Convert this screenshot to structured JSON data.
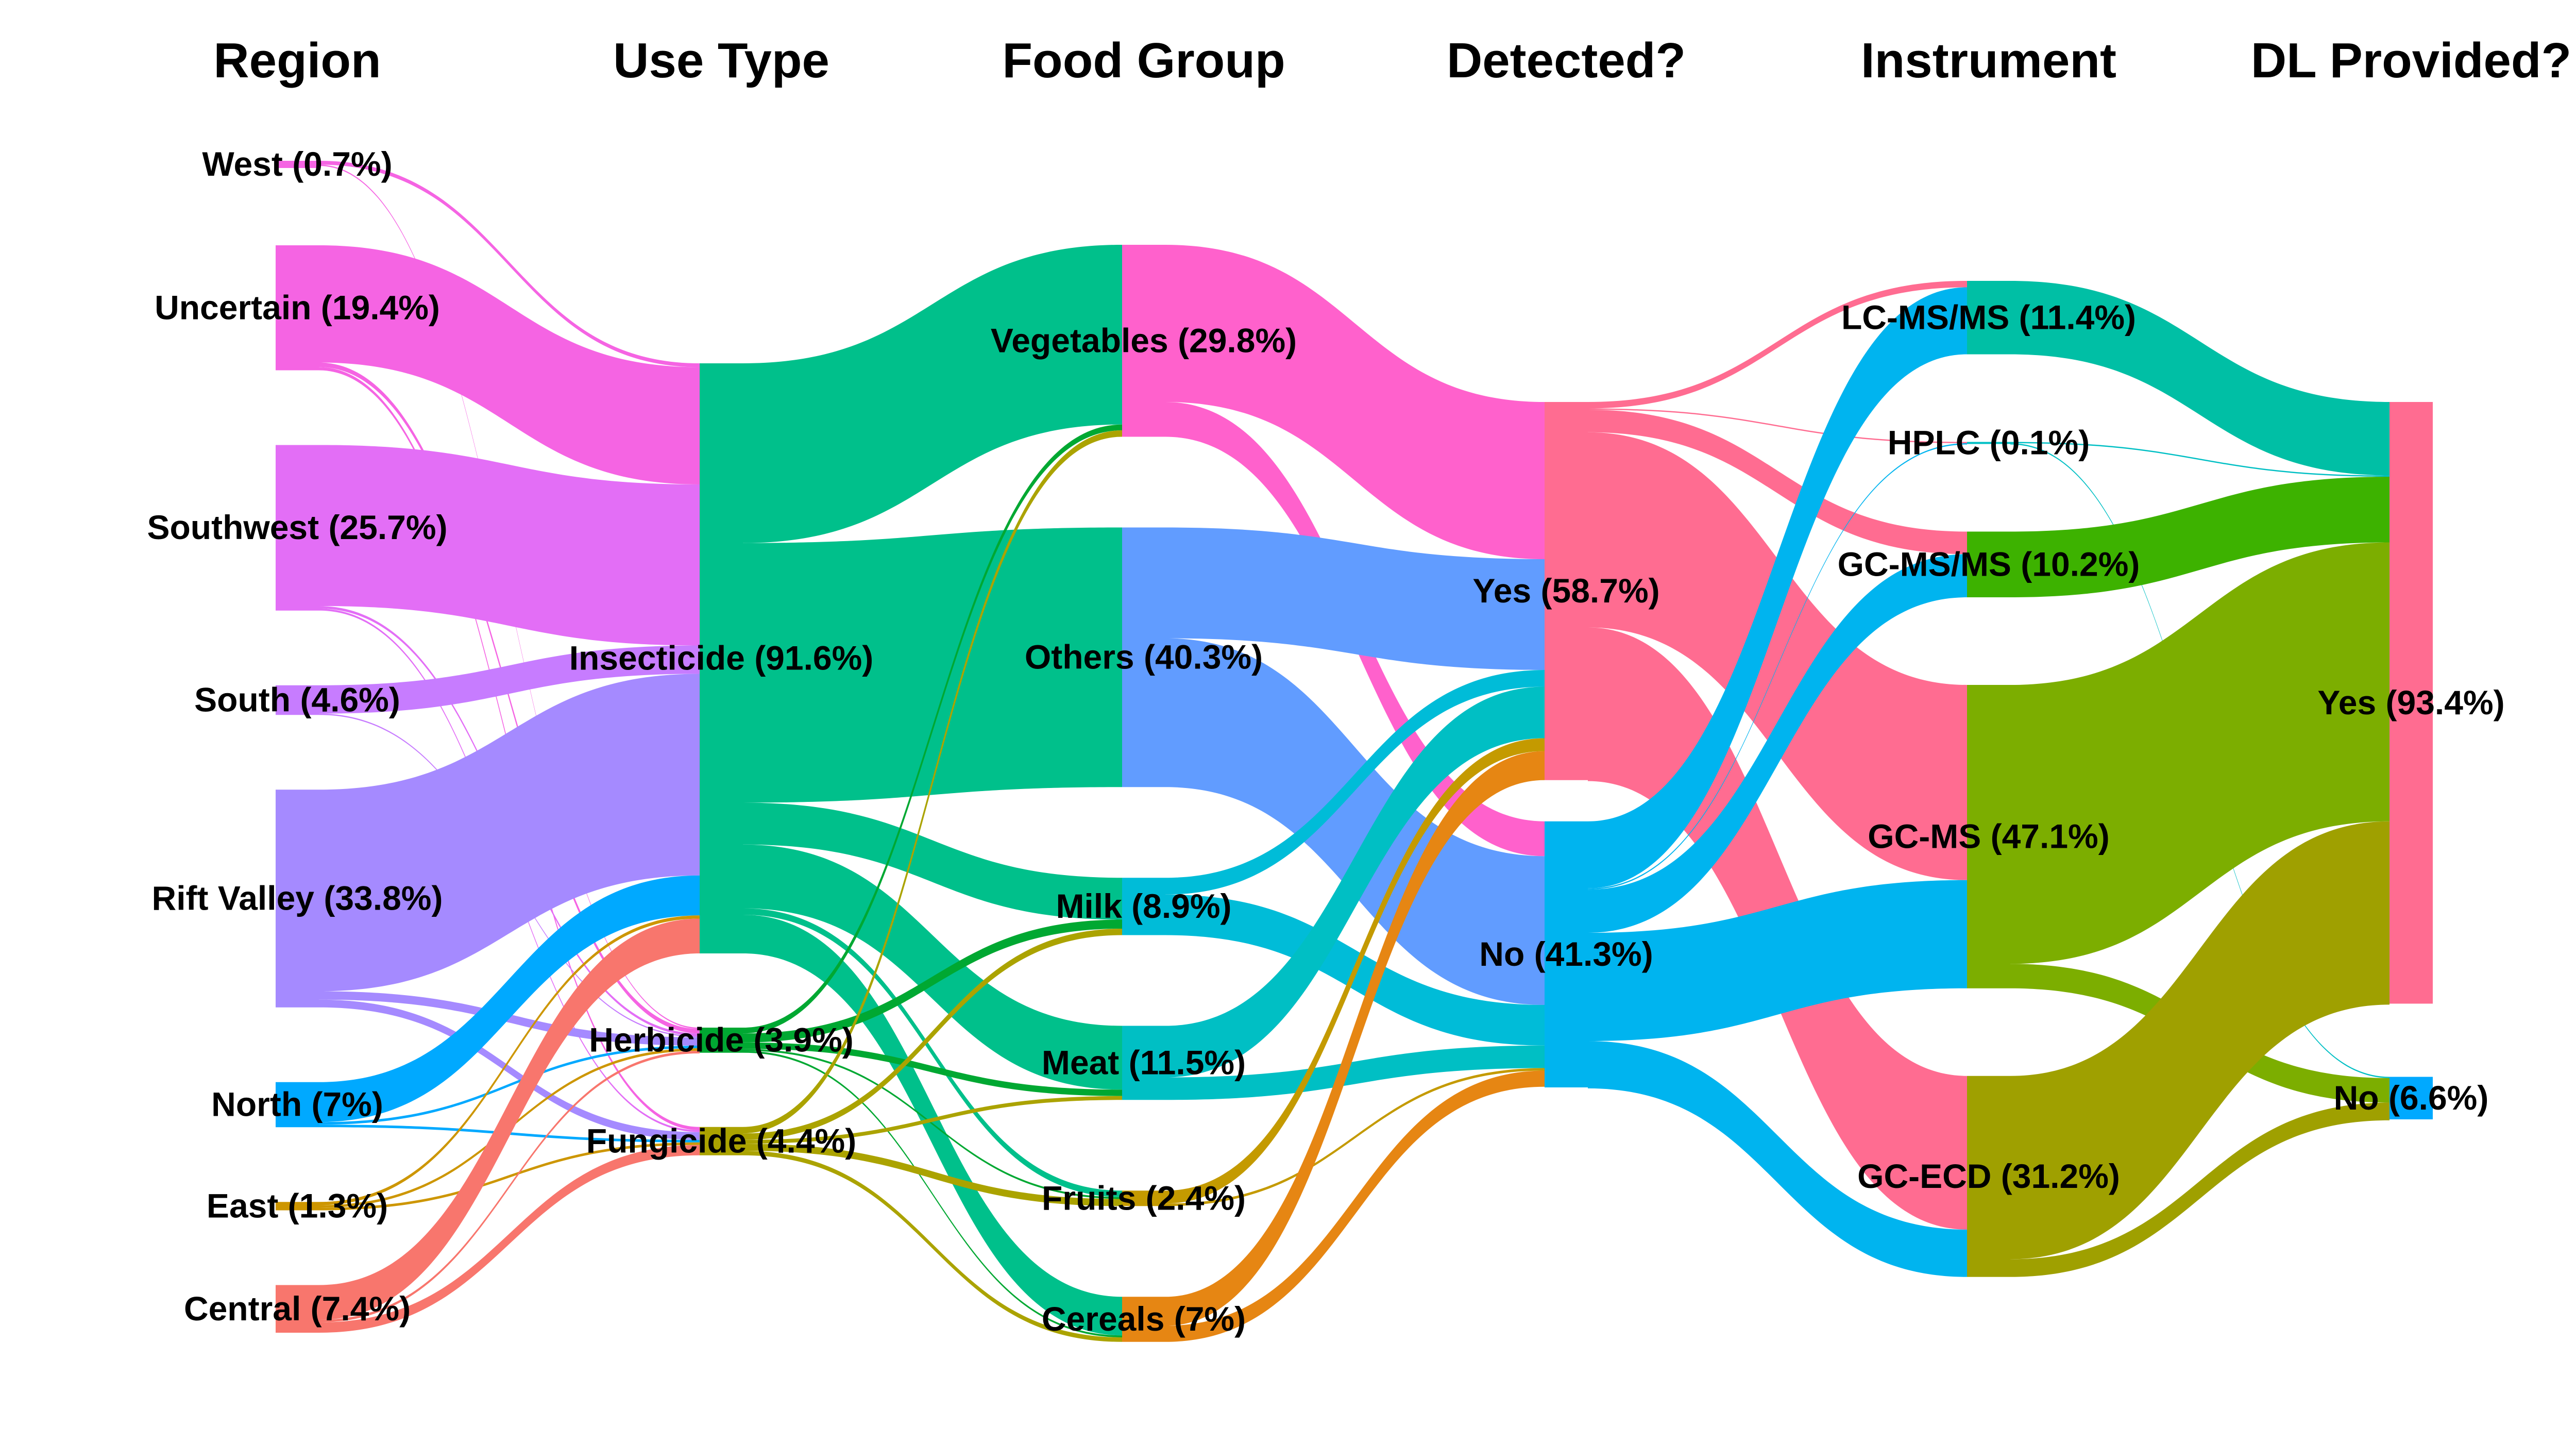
{
  "columns": [
    {
      "key": "region",
      "header": "Region"
    },
    {
      "key": "use_type",
      "header": "Use Type"
    },
    {
      "key": "food_group",
      "header": "Food Group"
    },
    {
      "key": "detected",
      "header": "Detected?"
    },
    {
      "key": "instrument",
      "header": "Instrument"
    },
    {
      "key": "dl_provided",
      "header": "DL Provided?"
    }
  ],
  "nodes": {
    "region": [
      {
        "id": "west",
        "label": "West (0.7%)",
        "share": 0.7,
        "color": "#F564E3"
      },
      {
        "id": "uncertain",
        "label": "Uncertain (19.4%)",
        "share": 19.4,
        "color": "#F564E3"
      },
      {
        "id": "southwest",
        "label": "Southwest (25.7%)",
        "share": 25.7,
        "color": "#E36EF6"
      },
      {
        "id": "south",
        "label": "South (4.6%)",
        "share": 4.6,
        "color": "#C77CFF"
      },
      {
        "id": "riftvalley",
        "label": "Rift Valley (33.8%)",
        "share": 33.8,
        "color": "#A58AFF"
      },
      {
        "id": "north",
        "label": "North (7%)",
        "share": 7.0,
        "color": "#00A9FF"
      },
      {
        "id": "east",
        "label": "East (1.3%)",
        "share": 1.3,
        "color": "#CD9600"
      },
      {
        "id": "central",
        "label": "Central (7.4%)",
        "share": 7.4,
        "color": "#F8766D"
      }
    ],
    "use_type": [
      {
        "id": "insecticide",
        "label": "Insecticide (91.6%)",
        "share": 91.6,
        "color": "#00C08B"
      },
      {
        "id": "herbicide",
        "label": "Herbicide (3.9%)",
        "share": 3.9,
        "color": "#00A832"
      },
      {
        "id": "fungicide",
        "label": "Fungicide (4.4%)",
        "share": 4.4,
        "color": "#ABA300"
      }
    ],
    "food_group": [
      {
        "id": "vegetables",
        "label": "Vegetables (29.8%)",
        "share": 29.8,
        "color": "#FF61CC"
      },
      {
        "id": "others",
        "label": "Others (40.3%)",
        "share": 40.3,
        "color": "#619CFF"
      },
      {
        "id": "milk",
        "label": "Milk (8.9%)",
        "share": 8.9,
        "color": "#00BCD8"
      },
      {
        "id": "meat",
        "label": "Meat (11.5%)",
        "share": 11.5,
        "color": "#00BFC4"
      },
      {
        "id": "fruits",
        "label": "Fruits (2.4%)",
        "share": 2.4,
        "color": "#C49A00"
      },
      {
        "id": "cereals",
        "label": "Cereals (7%)",
        "share": 7.0,
        "color": "#E68613"
      }
    ],
    "detected": [
      {
        "id": "yes",
        "label": "Yes (58.7%)",
        "share": 58.7,
        "color": "#FF6C91"
      },
      {
        "id": "no",
        "label": "No (41.3%)",
        "share": 41.3,
        "color": "#00B4EF"
      }
    ],
    "instrument": [
      {
        "id": "lcmsms",
        "label": "LC-MS/MS (11.4%)",
        "share": 11.4,
        "color": "#00BFA5"
      },
      {
        "id": "hplc",
        "label": "HPLC (0.1%)",
        "share": 0.1,
        "color": "#00BFC4"
      },
      {
        "id": "gcmsms",
        "label": "GC-MS/MS (10.2%)",
        "share": 10.2,
        "color": "#3DB200"
      },
      {
        "id": "gcms",
        "label": "GC-MS (47.1%)",
        "share": 47.1,
        "color": "#7CAE00"
      },
      {
        "id": "gcecd",
        "label": "GC-ECD (31.2%)",
        "share": 31.2,
        "color": "#9FA000"
      }
    ],
    "dl_provided": [
      {
        "id": "dlyes",
        "label": "Yes (93.4%)",
        "share": 93.4,
        "color": "#FF6C91"
      },
      {
        "id": "dlno",
        "label": "No (6.6%)",
        "share": 6.6,
        "color": "#00A9FF"
      }
    ]
  },
  "flows": [
    {
      "from": "region",
      "source": "west",
      "target": "insecticide",
      "value": 0.6,
      "color": "#F564E3"
    },
    {
      "from": "region",
      "source": "west",
      "target": "herbicide",
      "value": 0.1,
      "color": "#F564E3"
    },
    {
      "from": "region",
      "source": "uncertain",
      "target": "insecticide",
      "value": 18.2,
      "color": "#F564E3"
    },
    {
      "from": "region",
      "source": "uncertain",
      "target": "herbicide",
      "value": 0.7,
      "color": "#F564E3"
    },
    {
      "from": "region",
      "source": "uncertain",
      "target": "fungicide",
      "value": 0.5,
      "color": "#F564E3"
    },
    {
      "from": "region",
      "source": "southwest",
      "target": "insecticide",
      "value": 25.0,
      "color": "#E36EF6"
    },
    {
      "from": "region",
      "source": "southwest",
      "target": "herbicide",
      "value": 0.4,
      "color": "#E36EF6"
    },
    {
      "from": "region",
      "source": "southwest",
      "target": "fungicide",
      "value": 0.3,
      "color": "#E36EF6"
    },
    {
      "from": "region",
      "source": "south",
      "target": "insecticide",
      "value": 4.4,
      "color": "#C77CFF"
    },
    {
      "from": "region",
      "source": "south",
      "target": "herbicide",
      "value": 0.2,
      "color": "#C77CFF"
    },
    {
      "from": "region",
      "source": "riftvalley",
      "target": "insecticide",
      "value": 31.3,
      "color": "#A58AFF"
    },
    {
      "from": "region",
      "source": "riftvalley",
      "target": "herbicide",
      "value": 1.3,
      "color": "#A58AFF"
    },
    {
      "from": "region",
      "source": "riftvalley",
      "target": "fungicide",
      "value": 1.2,
      "color": "#A58AFF"
    },
    {
      "from": "region",
      "source": "north",
      "target": "insecticide",
      "value": 6.2,
      "color": "#00A9FF"
    },
    {
      "from": "region",
      "source": "north",
      "target": "herbicide",
      "value": 0.4,
      "color": "#00A9FF"
    },
    {
      "from": "region",
      "source": "north",
      "target": "fungicide",
      "value": 0.4,
      "color": "#00A9FF"
    },
    {
      "from": "region",
      "source": "east",
      "target": "insecticide",
      "value": 0.5,
      "color": "#CD9600"
    },
    {
      "from": "region",
      "source": "east",
      "target": "herbicide",
      "value": 0.4,
      "color": "#CD9600"
    },
    {
      "from": "region",
      "source": "east",
      "target": "fungicide",
      "value": 0.4,
      "color": "#CD9600"
    },
    {
      "from": "region",
      "source": "central",
      "target": "insecticide",
      "value": 5.4,
      "color": "#F8766D"
    },
    {
      "from": "region",
      "source": "central",
      "target": "herbicide",
      "value": 0.4,
      "color": "#F8766D"
    },
    {
      "from": "region",
      "source": "central",
      "target": "fungicide",
      "value": 1.6,
      "color": "#F8766D"
    },
    {
      "from": "use_type",
      "source": "insecticide",
      "target": "vegetables",
      "value": 27.9,
      "color": "#00C08B"
    },
    {
      "from": "use_type",
      "source": "insecticide",
      "target": "others",
      "value": 40.3,
      "color": "#00C08B"
    },
    {
      "from": "use_type",
      "source": "insecticide",
      "target": "milk",
      "value": 6.5,
      "color": "#00C08B"
    },
    {
      "from": "use_type",
      "source": "insecticide",
      "target": "meat",
      "value": 9.9,
      "color": "#00C08B"
    },
    {
      "from": "use_type",
      "source": "insecticide",
      "target": "fruits",
      "value": 1.0,
      "color": "#00C08B"
    },
    {
      "from": "use_type",
      "source": "insecticide",
      "target": "cereals",
      "value": 6.0,
      "color": "#00C08B"
    },
    {
      "from": "use_type",
      "source": "herbicide",
      "target": "vegetables",
      "value": 0.9,
      "color": "#00A832"
    },
    {
      "from": "use_type",
      "source": "herbicide",
      "target": "milk",
      "value": 1.4,
      "color": "#00A832"
    },
    {
      "from": "use_type",
      "source": "herbicide",
      "target": "meat",
      "value": 1.0,
      "color": "#00A832"
    },
    {
      "from": "use_type",
      "source": "herbicide",
      "target": "fruits",
      "value": 0.3,
      "color": "#00A832"
    },
    {
      "from": "use_type",
      "source": "herbicide",
      "target": "cereals",
      "value": 0.3,
      "color": "#00A832"
    },
    {
      "from": "use_type",
      "source": "fungicide",
      "target": "vegetables",
      "value": 1.0,
      "color": "#ABA300"
    },
    {
      "from": "use_type",
      "source": "fungicide",
      "target": "milk",
      "value": 1.0,
      "color": "#ABA300"
    },
    {
      "from": "use_type",
      "source": "fungicide",
      "target": "meat",
      "value": 0.6,
      "color": "#ABA300"
    },
    {
      "from": "use_type",
      "source": "fungicide",
      "target": "fruits",
      "value": 1.1,
      "color": "#ABA300"
    },
    {
      "from": "use_type",
      "source": "fungicide",
      "target": "cereals",
      "value": 0.7,
      "color": "#ABA300"
    },
    {
      "from": "food_group",
      "source": "vegetables",
      "target": "yes",
      "value": 24.4,
      "color": "#FF61CC"
    },
    {
      "from": "food_group",
      "source": "vegetables",
      "target": "no",
      "value": 5.4,
      "color": "#FF61CC"
    },
    {
      "from": "food_group",
      "source": "others",
      "target": "yes",
      "value": 17.2,
      "color": "#619CFF"
    },
    {
      "from": "food_group",
      "source": "others",
      "target": "no",
      "value": 23.1,
      "color": "#619CFF"
    },
    {
      "from": "food_group",
      "source": "milk",
      "target": "yes",
      "value": 2.6,
      "color": "#00BCD8"
    },
    {
      "from": "food_group",
      "source": "milk",
      "target": "no",
      "value": 6.3,
      "color": "#00BCD8"
    },
    {
      "from": "food_group",
      "source": "meat",
      "target": "yes",
      "value": 8.0,
      "color": "#00BFC4"
    },
    {
      "from": "food_group",
      "source": "meat",
      "target": "no",
      "value": 3.5,
      "color": "#00BFC4"
    },
    {
      "from": "food_group",
      "source": "fruits",
      "target": "yes",
      "value": 2.0,
      "color": "#C49A00"
    },
    {
      "from": "food_group",
      "source": "fruits",
      "target": "no",
      "value": 0.4,
      "color": "#C49A00"
    },
    {
      "from": "food_group",
      "source": "cereals",
      "target": "yes",
      "value": 4.5,
      "color": "#E68613"
    },
    {
      "from": "food_group",
      "source": "cereals",
      "target": "no",
      "value": 2.5,
      "color": "#E68613"
    },
    {
      "from": "detected",
      "source": "yes",
      "target": "lcmsms",
      "value": 1.0,
      "color": "#FF6C91"
    },
    {
      "from": "detected",
      "source": "yes",
      "target": "hplc",
      "value": 0.05,
      "color": "#FF6C91"
    },
    {
      "from": "detected",
      "source": "yes",
      "target": "gcmsms",
      "value": 3.5,
      "color": "#FF6C91"
    },
    {
      "from": "detected",
      "source": "yes",
      "target": "gcms",
      "value": 30.3,
      "color": "#FF6C91"
    },
    {
      "from": "detected",
      "source": "yes",
      "target": "gcecd",
      "value": 23.85,
      "color": "#FF6C91"
    },
    {
      "from": "detected",
      "source": "no",
      "target": "lcmsms",
      "value": 10.4,
      "color": "#00B4EF"
    },
    {
      "from": "detected",
      "source": "no",
      "target": "hplc",
      "value": 0.05,
      "color": "#00B4EF"
    },
    {
      "from": "detected",
      "source": "no",
      "target": "gcmsms",
      "value": 6.7,
      "color": "#00B4EF"
    },
    {
      "from": "detected",
      "source": "no",
      "target": "gcms",
      "value": 16.8,
      "color": "#00B4EF"
    },
    {
      "from": "detected",
      "source": "no",
      "target": "gcecd",
      "value": 7.35,
      "color": "#00B4EF"
    },
    {
      "from": "instrument",
      "source": "lcmsms",
      "target": "dlyes",
      "value": 11.4,
      "color": "#00BFA5"
    },
    {
      "from": "instrument",
      "source": "hplc",
      "target": "dlyes",
      "value": 0.05,
      "color": "#00BFC4"
    },
    {
      "from": "instrument",
      "source": "hplc",
      "target": "dlno",
      "value": 0.05,
      "color": "#00BFC4"
    },
    {
      "from": "instrument",
      "source": "gcmsms",
      "target": "dlyes",
      "value": 10.2,
      "color": "#3DB200"
    },
    {
      "from": "instrument",
      "source": "gcms",
      "target": "dlyes",
      "value": 43.3,
      "color": "#7CAE00"
    },
    {
      "from": "instrument",
      "source": "gcms",
      "target": "dlno",
      "value": 3.8,
      "color": "#7CAE00"
    },
    {
      "from": "instrument",
      "source": "gcecd",
      "target": "dlyes",
      "value": 28.45,
      "color": "#9FA000"
    },
    {
      "from": "instrument",
      "source": "gcecd",
      "target": "dlno",
      "value": 2.75,
      "color": "#9FA000"
    }
  ]
}
